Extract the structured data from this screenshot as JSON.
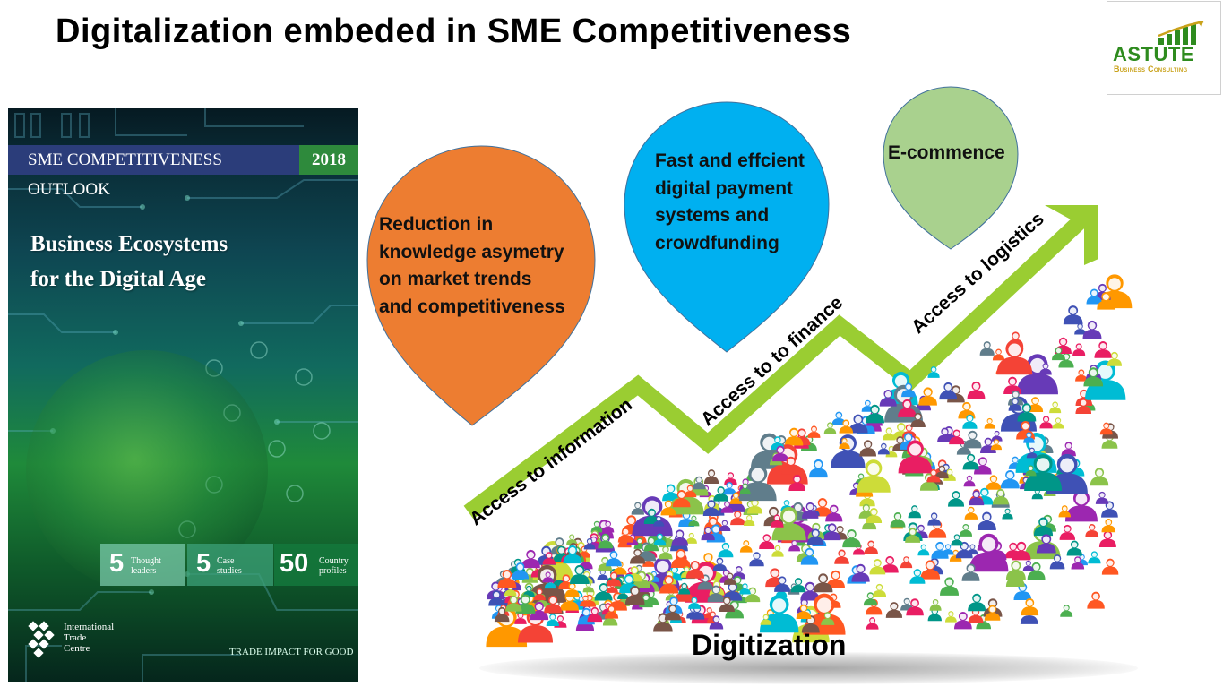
{
  "title": "Digitalization embeded in SME Competitiveness",
  "logo": {
    "name": "ASTUTE",
    "tagline": "Business Consulting",
    "brand_color": "#2e8b1e",
    "accent_color": "#c9a21a"
  },
  "book": {
    "banner": "SME COMPETITIVENESS OUTLOOK",
    "year": "2018",
    "title_line1": "Business Ecosystems",
    "title_line2": "for the Digital Age",
    "stats": [
      {
        "number": "5",
        "label_line1": "Thought",
        "label_line2": "leaders"
      },
      {
        "number": "5",
        "label_line1": "Case",
        "label_line2": "studies"
      },
      {
        "number": "50",
        "label_line1": "Country",
        "label_line2": "profiles"
      }
    ],
    "publisher_line1": "International",
    "publisher_line2": "Trade",
    "publisher_line3": "Centre",
    "tagline": "TRADE IMPACT FOR GOOD"
  },
  "pins": [
    {
      "color": "#ed7d31",
      "line1": "Reduction in",
      "line2": "knowledge asymetry",
      "line3": "on market trends",
      "line4": "and competitiveness"
    },
    {
      "color": "#00b0f0",
      "line1": "Fast and effcient",
      "line2": "digital payment",
      "line3": "systems and",
      "line4": "crowdfunding"
    },
    {
      "color": "#a9d18e",
      "line1": "E-commence"
    }
  ],
  "arrow": {
    "color": "#9acd32",
    "labels": [
      "Access to information",
      "Access to  to finance",
      "Access to logistics"
    ]
  },
  "footer_label": "Digitization",
  "icons": [
    "people-crowd-icon",
    "growth-arrow-icon",
    "globe-icon",
    "itc-logo-icon",
    "logo-bars-icon"
  ]
}
